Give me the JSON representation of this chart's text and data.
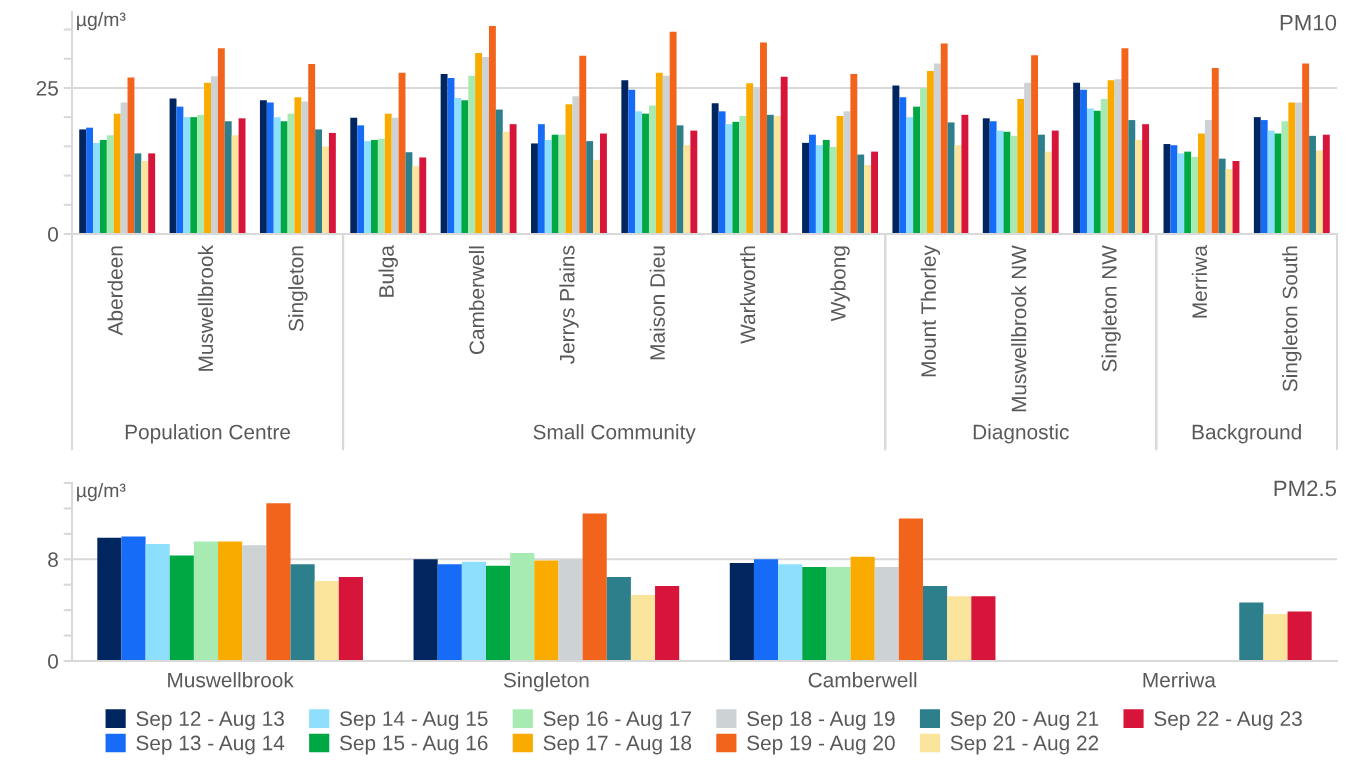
{
  "chart_data": [
    {
      "type": "bar",
      "title": "PM10",
      "ylabel": "µg/m³",
      "categories": [
        "Aberdeen",
        "Muswellbrook",
        "Singleton",
        "Bulga",
        "Camberwell",
        "Jerrys Plains",
        "Maison Dieu",
        "Warkworth",
        "Wybong",
        "Mount Thorley",
        "Muswellbrook NW",
        "Singleton NW",
        "Merriwa",
        "Singleton South"
      ],
      "annotations": [
        "Population Centre",
        "Small Community",
        "Diagnostic",
        "Background"
      ],
      "ylim": [
        0,
        38
      ],
      "yticks": [
        0,
        {
          "value": 5,
          "label": null
        },
        {
          "value": 10,
          "label": null
        },
        {
          "value": 15,
          "label": null
        },
        {
          "value": 20,
          "label": null
        },
        25,
        {
          "value": 30,
          "label": null
        },
        {
          "value": 35,
          "label": null
        }
      ],
      "grid": "y",
      "legend": false,
      "series": [
        {
          "color": "#00255f",
          "values": [
            17.9,
            23.2,
            22.9,
            19.9,
            27.4,
            15.5,
            26.3,
            22.4,
            15.6,
            25.4,
            19.8,
            25.9,
            15.4,
            20.0
          ]
        },
        {
          "color": "#166cf7",
          "values": [
            18.2,
            21.8,
            22.5,
            18.6,
            26.7,
            18.8,
            24.7,
            21.0,
            17.0,
            23.4,
            19.3,
            24.7,
            15.2,
            19.5
          ]
        },
        {
          "color": "#8ddffd",
          "values": [
            15.6,
            20.0,
            20.0,
            15.9,
            23.3,
            16.1,
            21.0,
            18.8,
            15.2,
            20.0,
            17.7,
            21.5,
            13.8,
            17.7
          ]
        },
        {
          "color": "#00a843",
          "values": [
            16.1,
            20.0,
            19.3,
            16.1,
            22.9,
            17.0,
            20.6,
            19.2,
            16.1,
            21.8,
            17.5,
            21.1,
            14.1,
            17.2
          ]
        },
        {
          "color": "#a8ebb2",
          "values": [
            16.9,
            20.4,
            20.6,
            16.3,
            27.1,
            17.0,
            22.0,
            20.2,
            14.9,
            25.0,
            16.8,
            23.1,
            13.2,
            19.3
          ]
        },
        {
          "color": "#f9ab00",
          "values": [
            20.6,
            25.9,
            23.4,
            20.6,
            31.0,
            22.2,
            27.6,
            25.8,
            20.2,
            27.9,
            23.1,
            26.3,
            17.2,
            22.5
          ]
        },
        {
          "color": "#cdd2d5",
          "values": [
            22.5,
            27.0,
            22.7,
            19.9,
            30.3,
            23.6,
            27.1,
            25.1,
            21.0,
            29.2,
            25.9,
            26.5,
            19.5,
            22.5
          ]
        },
        {
          "color": "#f2631c",
          "values": [
            26.8,
            31.8,
            29.1,
            27.6,
            35.6,
            30.5,
            34.6,
            32.8,
            27.4,
            32.6,
            30.6,
            31.8,
            28.4,
            29.2
          ]
        },
        {
          "color": "#2e7f8c",
          "values": [
            13.8,
            19.3,
            17.9,
            14.0,
            21.3,
            15.9,
            18.6,
            20.4,
            13.6,
            19.1,
            17.0,
            19.5,
            12.9,
            16.8
          ]
        },
        {
          "color": "#fbe49b",
          "values": [
            12.5,
            16.9,
            15.0,
            11.6,
            17.5,
            12.7,
            15.2,
            20.2,
            11.8,
            15.2,
            14.1,
            16.1,
            11.1,
            14.3
          ]
        },
        {
          "color": "#d7153a",
          "values": [
            13.8,
            19.8,
            17.3,
            13.1,
            18.8,
            17.2,
            17.7,
            26.9,
            14.1,
            20.4,
            17.7,
            18.8,
            12.5,
            17.0
          ]
        }
      ]
    },
    {
      "type": "bar",
      "title": "PM2.5",
      "ylabel": "µg/m³",
      "categories": [
        "Muswellbrook",
        "Singleton",
        "Camberwell",
        "Merriwa"
      ],
      "ylim": [
        0,
        14
      ],
      "yticks": [
        0,
        {
          "value": 2,
          "label": null
        },
        {
          "value": 4,
          "label": null
        },
        {
          "value": 6,
          "label": null
        },
        8,
        {
          "value": 10,
          "label": null
        },
        {
          "value": 12,
          "label": null
        },
        {
          "value": 14,
          "label": null
        }
      ],
      "grid": "y",
      "legend": "bottom",
      "series": [
        {
          "name": "Sep 12 - Aug 13",
          "color": "#00255f",
          "values": [
            9.7,
            8.0,
            7.7,
            null
          ]
        },
        {
          "name": "Sep 13 - Aug 14",
          "color": "#166cf7",
          "values": [
            9.8,
            7.6,
            8.0,
            null
          ]
        },
        {
          "name": "Sep 14 - Aug 15",
          "color": "#8ddffd",
          "values": [
            9.2,
            7.8,
            7.6,
            null
          ]
        },
        {
          "name": "Sep 15 - Aug 16",
          "color": "#00a843",
          "values": [
            8.3,
            7.5,
            7.4,
            null
          ]
        },
        {
          "name": "Sep 16 - Aug 17",
          "color": "#a8ebb2",
          "values": [
            9.4,
            8.5,
            7.4,
            null
          ]
        },
        {
          "name": "Sep 17 - Aug 18",
          "color": "#f9ab00",
          "values": [
            9.4,
            7.9,
            8.2,
            null
          ]
        },
        {
          "name": "Sep 18 - Aug 19",
          "color": "#cdd2d5",
          "values": [
            9.1,
            8.0,
            7.4,
            null
          ]
        },
        {
          "name": "Sep 19 - Aug 20",
          "color": "#f2631c",
          "values": [
            12.4,
            11.6,
            11.2,
            null
          ]
        },
        {
          "name": "Sep 20 - Aug 21",
          "color": "#2e7f8c",
          "values": [
            7.6,
            6.6,
            5.9,
            4.6
          ]
        },
        {
          "name": "Sep 21 - Aug 22",
          "color": "#fbe49b",
          "values": [
            6.3,
            5.2,
            5.1,
            3.7
          ]
        },
        {
          "name": "Sep 22 - Aug 23",
          "color": "#d7153a",
          "values": [
            6.6,
            5.9,
            5.1,
            3.9
          ]
        }
      ]
    }
  ]
}
